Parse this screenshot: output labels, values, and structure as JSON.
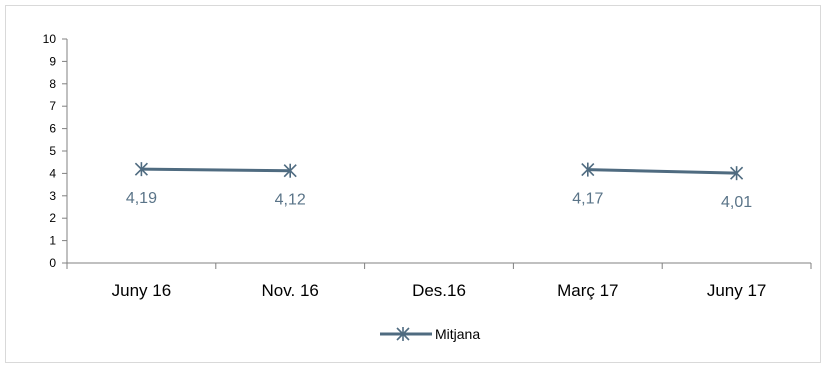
{
  "chart_data": {
    "type": "line",
    "categories": [
      "Juny 16",
      "Nov. 16",
      "Des.16",
      "Març 17",
      "Juny 17"
    ],
    "series": [
      {
        "name": "Mitjana",
        "values": [
          4.19,
          4.12,
          null,
          4.17,
          4.01
        ]
      }
    ],
    "data_labels": [
      "4,19",
      "4,12",
      "",
      "4,17",
      "4,01"
    ],
    "yticks": [
      "0",
      "1",
      "2",
      "3",
      "4",
      "5",
      "6",
      "7",
      "8",
      "9",
      "10"
    ],
    "ylim": [
      0,
      10
    ],
    "grid": false,
    "legend_position": "bottom",
    "series_color": "#4f6b80",
    "label_color": "#5a7488"
  }
}
